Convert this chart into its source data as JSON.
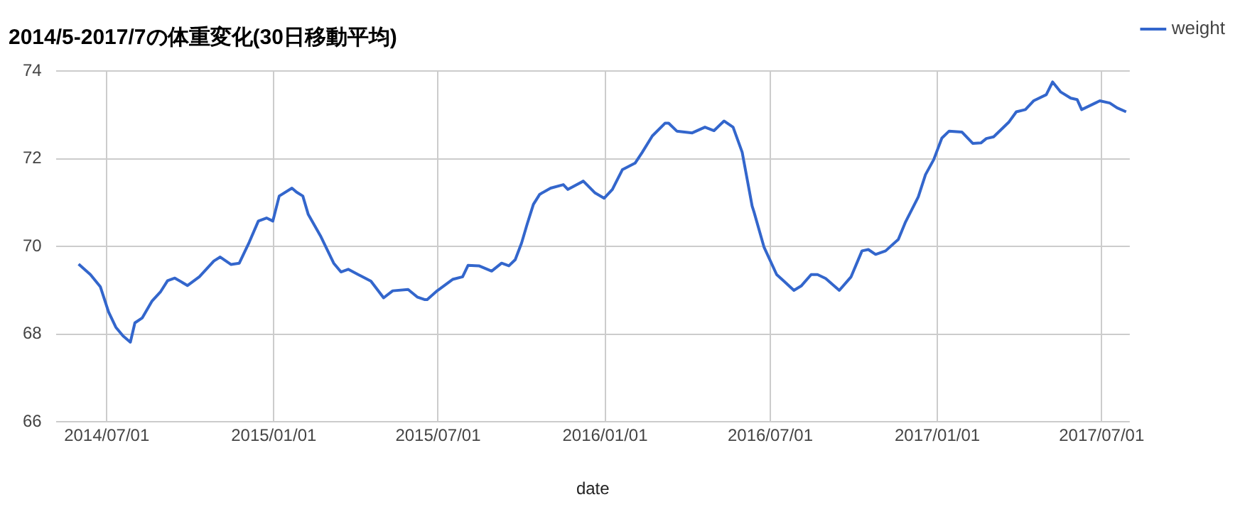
{
  "chart_data": {
    "type": "line",
    "title": "2014/5-2017/7の体重変化(30日移動平均)",
    "xlabel": "date",
    "x": [
      "2014-05-31",
      "2014-06-13",
      "2014-06-24",
      "2014-07-03",
      "2014-07-11",
      "2014-07-19",
      "2014-07-27",
      "2014-08-01",
      "2014-08-09",
      "2014-08-20",
      "2014-08-29",
      "2014-09-06",
      "2014-09-14",
      "2014-09-28",
      "2014-10-11",
      "2014-10-27",
      "2014-11-03",
      "2014-11-15",
      "2014-11-24",
      "2014-12-05",
      "2014-12-15",
      "2014-12-24",
      "2014-12-31",
      "2015-01-07",
      "2015-01-21",
      "2015-01-26",
      "2015-02-02",
      "2015-02-08",
      "2015-02-22",
      "2015-03-08",
      "2015-03-16",
      "2015-03-24",
      "2015-04-04",
      "2015-04-18",
      "2015-05-02",
      "2015-05-12",
      "2015-05-29",
      "2015-06-08",
      "2015-06-16",
      "2015-06-19",
      "2015-06-30",
      "2015-07-17",
      "2015-07-28",
      "2015-08-03",
      "2015-08-15",
      "2015-08-29",
      "2015-09-09",
      "2015-09-17",
      "2015-09-24",
      "2015-10-01",
      "2015-10-07",
      "2015-10-14",
      "2015-10-21",
      "2015-11-02",
      "2015-11-16",
      "2015-11-21",
      "2015-12-08",
      "2015-12-21",
      "2015-12-31",
      "2016-01-09",
      "2016-01-20",
      "2016-02-03",
      "2016-02-11",
      "2016-02-22",
      "2016-03-07",
      "2016-03-11",
      "2016-03-20",
      "2016-04-06",
      "2016-04-20",
      "2016-04-30",
      "2016-05-11",
      "2016-05-21",
      "2016-05-31",
      "2016-06-11",
      "2016-06-13",
      "2016-06-24",
      "2016-07-08",
      "2016-07-16",
      "2016-07-27",
      "2016-08-04",
      "2016-08-15",
      "2016-08-22",
      "2016-08-31",
      "2016-09-15",
      "2016-09-28",
      "2016-10-10",
      "2016-10-17",
      "2016-10-25",
      "2016-11-05",
      "2016-11-19",
      "2016-11-27",
      "2016-12-11",
      "2016-12-19",
      "2016-12-28",
      "2017-01-06",
      "2017-01-14",
      "2017-01-28",
      "2017-02-09",
      "2017-02-18",
      "2017-02-24",
      "2017-03-04",
      "2017-03-21",
      "2017-03-29",
      "2017-04-08",
      "2017-04-17",
      "2017-05-01",
      "2017-05-08",
      "2017-05-17",
      "2017-05-28",
      "2017-06-04",
      "2017-06-09",
      "2017-06-24",
      "2017-06-29",
      "2017-07-10",
      "2017-07-18",
      "2017-07-28"
    ],
    "series": [
      {
        "name": "weight",
        "color": "#3366cc",
        "values": [
          69.6,
          69.36,
          69.08,
          68.51,
          68.16,
          67.96,
          67.82,
          68.26,
          68.37,
          68.76,
          68.96,
          69.22,
          69.28,
          69.11,
          69.31,
          69.67,
          69.76,
          69.59,
          69.62,
          70.1,
          70.58,
          70.65,
          70.58,
          71.15,
          71.33,
          71.24,
          71.15,
          70.73,
          70.22,
          69.62,
          69.42,
          69.48,
          69.36,
          69.21,
          68.83,
          68.99,
          69.02,
          68.85,
          68.79,
          68.79,
          68.99,
          69.25,
          69.31,
          69.57,
          69.56,
          69.44,
          69.62,
          69.56,
          69.7,
          70.08,
          70.5,
          70.96,
          71.19,
          71.33,
          71.41,
          71.3,
          71.49,
          71.22,
          71.1,
          71.3,
          71.75,
          71.9,
          72.15,
          72.52,
          72.81,
          72.81,
          72.63,
          72.59,
          72.72,
          72.64,
          72.86,
          72.72,
          72.15,
          70.92,
          70.79,
          69.99,
          69.36,
          69.21,
          69.0,
          69.1,
          69.36,
          69.36,
          69.27,
          69.0,
          69.31,
          69.9,
          69.93,
          69.82,
          69.9,
          70.16,
          70.56,
          71.13,
          71.64,
          71.98,
          72.47,
          72.63,
          72.61,
          72.35,
          72.36,
          72.46,
          72.5,
          72.84,
          73.07,
          73.12,
          73.32,
          73.46,
          73.75,
          73.52,
          73.38,
          73.35,
          73.12,
          73.27,
          73.32,
          73.27,
          73.16,
          73.07
        ]
      }
    ],
    "xlim": [
      "2014-05-06",
      "2017-08-01"
    ],
    "xticks": [
      {
        "value": "2014-07-01",
        "label": "2014/07/01"
      },
      {
        "value": "2015-01-01",
        "label": "2015/01/01"
      },
      {
        "value": "2015-07-01",
        "label": "2015/07/01"
      },
      {
        "value": "2016-01-01",
        "label": "2016/01/01"
      },
      {
        "value": "2016-07-01",
        "label": "2016/07/01"
      },
      {
        "value": "2017-01-01",
        "label": "2017/01/01"
      },
      {
        "value": "2017-07-01",
        "label": "2017/07/01"
      }
    ],
    "ylim": [
      66,
      74
    ],
    "yticks": [
      66,
      68,
      70,
      72,
      74
    ],
    "grid": true,
    "legend": "top right",
    "marker": "none",
    "line_style": "solid"
  }
}
